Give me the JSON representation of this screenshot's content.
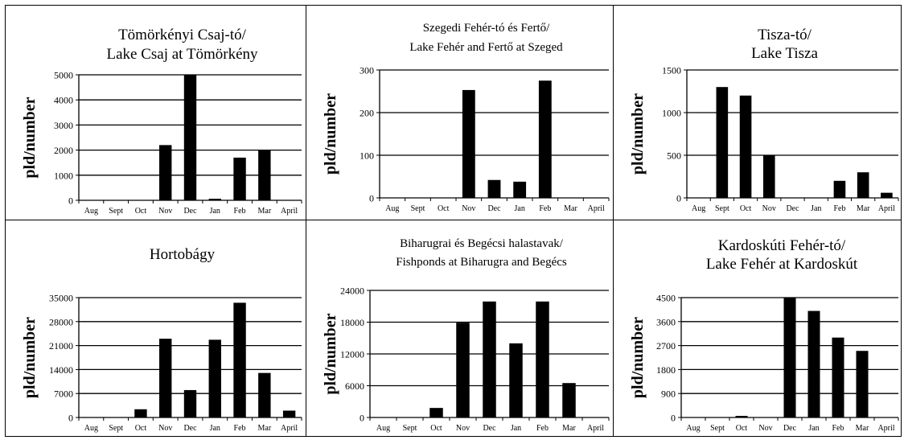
{
  "chart_data": [
    {
      "type": "bar",
      "title": "Tömörkényi Csaj-tó/",
      "subtitle": "Lake Csaj at Tömörkény",
      "ylabel": "pld/number",
      "categories": [
        "Aug",
        "Sept",
        "Oct",
        "Nov",
        "Dec",
        "Jan",
        "Feb",
        "Mar",
        "April"
      ],
      "values": [
        0,
        0,
        0,
        2200,
        5000,
        60,
        1700,
        2000,
        0
      ],
      "ylim": [
        0,
        5000
      ],
      "yticks": [
        0,
        1000,
        2000,
        3000,
        4000,
        5000
      ],
      "grid": true
    },
    {
      "type": "bar",
      "title": "Szegedi Fehér-tó és Fertő/",
      "subtitle": "Lake Fehér and Fertő at Szeged",
      "ylabel": "pld/number",
      "categories": [
        "Aug",
        "Sept",
        "Oct",
        "Nov",
        "Dec",
        "Jan",
        "Feb",
        "Mar",
        "April"
      ],
      "values": [
        0,
        0,
        0,
        253,
        42,
        38,
        275,
        0,
        0
      ],
      "ylim": [
        0,
        300
      ],
      "yticks": [
        0,
        100,
        200,
        300
      ],
      "grid": true
    },
    {
      "type": "bar",
      "title": "Tisza-tó/",
      "subtitle": "Lake Tisza",
      "ylabel": "pld/number",
      "categories": [
        "Aug",
        "Sept",
        "Oct",
        "Nov",
        "Dec",
        "Jan",
        "Feb",
        "Mar",
        "April"
      ],
      "values": [
        0,
        1300,
        1200,
        500,
        0,
        0,
        200,
        300,
        60
      ],
      "ylim": [
        0,
        1500
      ],
      "yticks": [
        0,
        500,
        1000,
        1500
      ],
      "grid": true
    },
    {
      "type": "bar",
      "title": "Hortobágy",
      "subtitle": "",
      "ylabel": "pld/number",
      "categories": [
        "Aug",
        "Sept",
        "Oct",
        "Nov",
        "Dec",
        "Jan",
        "Feb",
        "Mar",
        "April"
      ],
      "values": [
        0,
        0,
        2400,
        23000,
        8000,
        22700,
        33500,
        13000,
        2000
      ],
      "ylim": [
        0,
        35000
      ],
      "yticks": [
        0,
        7000,
        14000,
        21000,
        28000,
        35000
      ],
      "grid": true
    },
    {
      "type": "bar",
      "title": "Biharugrai és Begécsi halastavak/",
      "subtitle": "Fishponds at Biharugra and Begécs",
      "ylabel": "pld/number",
      "categories": [
        "Aug",
        "Sept",
        "Oct",
        "Nov",
        "Dec",
        "Jan",
        "Feb",
        "Mar",
        "April"
      ],
      "values": [
        0,
        0,
        1800,
        17900,
        21900,
        14000,
        21900,
        6500,
        0
      ],
      "ylim": [
        0,
        24000
      ],
      "yticks": [
        0,
        6000,
        12000,
        18000,
        24000
      ],
      "grid": true
    },
    {
      "type": "bar",
      "title": "Kardoskúti Fehér-tó/",
      "subtitle": "Lake Fehér at Kardoskút",
      "ylabel": "pld/number",
      "categories": [
        "Aug",
        "Sept",
        "Oct",
        "Nov",
        "Dec",
        "Jan",
        "Feb",
        "Mar",
        "April"
      ],
      "values": [
        0,
        0,
        60,
        0,
        4500,
        4000,
        3000,
        2500,
        0
      ],
      "ylim": [
        0,
        4500
      ],
      "yticks": [
        0,
        900,
        1800,
        2700,
        3600,
        4500
      ],
      "grid": true
    }
  ]
}
